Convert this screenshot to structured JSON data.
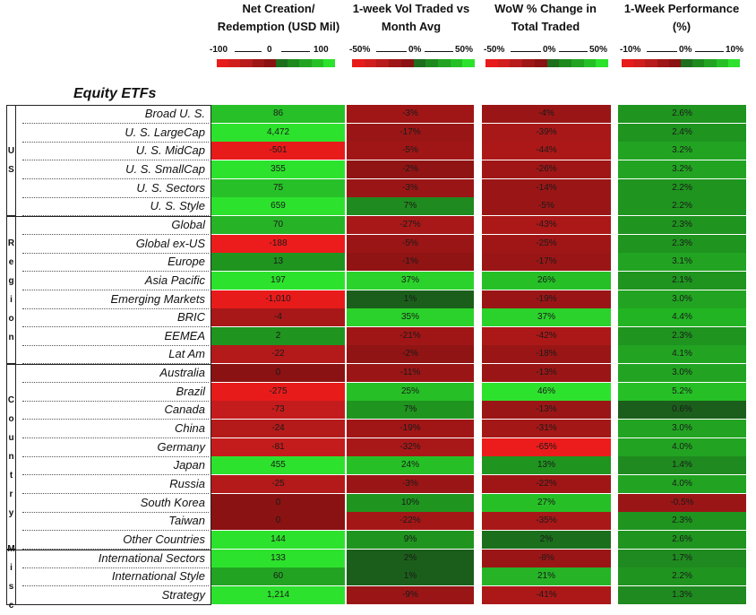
{
  "colors": {
    "scale": [
      "#e81b1b",
      "#d21d1d",
      "#b81b1b",
      "#9e1616",
      "#8a1212",
      "#1e6e1e",
      "#1e8a1e",
      "#22a422",
      "#26c026",
      "#2de22d"
    ]
  },
  "headers": [
    {
      "line1": "Net Creation/",
      "line2": "Redemption (USD Mil)",
      "scale_min": "-100",
      "scale_mid": "0",
      "scale_max": "100"
    },
    {
      "line1": "1-week Vol Traded vs",
      "line2": "Month Avg",
      "scale_min": "-50%",
      "scale_mid": "0%",
      "scale_max": "50%"
    },
    {
      "line1": "WoW % Change in",
      "line2": "Total Traded",
      "scale_min": "-50%",
      "scale_mid": "0%",
      "scale_max": "50%"
    },
    {
      "line1": "1-Week Performance",
      "line2": "(%)",
      "scale_min": "-10%",
      "scale_mid": "0%",
      "scale_max": "10%"
    }
  ],
  "section_title": "Equity ETFs",
  "groups": [
    {
      "letters": [
        "U",
        "S"
      ],
      "rows": 6
    },
    {
      "letters": [
        "R",
        "e",
        "g",
        "i",
        "o",
        "n"
      ],
      "rows": 8
    },
    {
      "letters": [
        "C",
        "o",
        "u",
        "n",
        "t",
        "r",
        "y"
      ],
      "rows": 10
    },
    {
      "letters": [
        "M",
        "i",
        "s",
        "c"
      ],
      "rows": 3
    }
  ],
  "chart_data": {
    "type": "table",
    "title": "Equity ETFs",
    "columns": [
      "Net Creation/ Redemption (USD Mil)",
      "1-week Vol Traded vs Month Avg",
      "WoW % Change in Total Traded",
      "1-Week Performance (%)"
    ],
    "rows": [
      {
        "label": "Broad U. S.",
        "values": [
          "86",
          "-3%",
          "-4%",
          "2.6%"
        ],
        "colors": [
          "#28c028",
          "#a01616",
          "#9a1616",
          "#1f941f"
        ]
      },
      {
        "label": "U. S. LargeCap",
        "values": [
          "4,472",
          "-17%",
          "-39%",
          "2.4%"
        ],
        "colors": [
          "#2de22d",
          "#9a1616",
          "#a81818",
          "#1f941f"
        ]
      },
      {
        "label": "U. S. MidCap",
        "values": [
          "-501",
          "-5%",
          "-44%",
          "3.2%"
        ],
        "colors": [
          "#e81b1b",
          "#a01616",
          "#ac1818",
          "#22a422"
        ]
      },
      {
        "label": "U. S. SmallCap",
        "values": [
          "355",
          "-2%",
          "-26%",
          "3.2%"
        ],
        "colors": [
          "#2de22d",
          "#901414",
          "#a01616",
          "#22a422"
        ]
      },
      {
        "label": "U. S. Sectors",
        "values": [
          "75",
          "-3%",
          "-14%",
          "2.2%"
        ],
        "colors": [
          "#28c028",
          "#9a1616",
          "#9a1616",
          "#1f941f"
        ]
      },
      {
        "label": "U. S. Style",
        "values": [
          "659",
          "7%",
          "-5%",
          "2.2%"
        ],
        "colors": [
          "#2de22d",
          "#1f8a1f",
          "#9a1616",
          "#1f941f"
        ]
      },
      {
        "label": "Global",
        "values": [
          "70",
          "-27%",
          "-43%",
          "2.3%"
        ],
        "colors": [
          "#26b426",
          "#a81818",
          "#ac1818",
          "#1f941f"
        ]
      },
      {
        "label": "Global ex-US",
        "values": [
          "-188",
          "-5%",
          "-25%",
          "2.3%"
        ],
        "colors": [
          "#ec1c1c",
          "#9a1616",
          "#a01616",
          "#1f941f"
        ]
      },
      {
        "label": "Europe",
        "values": [
          "13",
          "-1%",
          "-17%",
          "3.1%"
        ],
        "colors": [
          "#1f941f",
          "#901414",
          "#9a1616",
          "#22a422"
        ]
      },
      {
        "label": "Asia Pacific",
        "values": [
          "197",
          "37%",
          "26%",
          "2.1%"
        ],
        "colors": [
          "#2de22d",
          "#2bd22b",
          "#26c026",
          "#1f941f"
        ]
      },
      {
        "label": "Emerging Markets",
        "values": [
          "-1,010",
          "1%",
          "-19%",
          "3.0%"
        ],
        "colors": [
          "#e81b1b",
          "#1b5e1b",
          "#9a1616",
          "#22a422"
        ]
      },
      {
        "label": "BRIC",
        "values": [
          "-4",
          "35%",
          "37%",
          "4.4%"
        ],
        "colors": [
          "#a81818",
          "#2bd22b",
          "#2bd22b",
          "#22b422"
        ]
      },
      {
        "label": "EEMEA",
        "values": [
          "2",
          "-21%",
          "-42%",
          "2.3%"
        ],
        "colors": [
          "#1f941f",
          "#a01616",
          "#ac1818",
          "#1f941f"
        ]
      },
      {
        "label": "Lat Am",
        "values": [
          "-22",
          "-2%",
          "-18%",
          "4.1%"
        ],
        "colors": [
          "#b41a1a",
          "#901414",
          "#9a1616",
          "#22a422"
        ]
      },
      {
        "label": "Australia",
        "values": [
          "0",
          "-11%",
          "-13%",
          "3.0%"
        ],
        "colors": [
          "#8a1212",
          "#9a1616",
          "#9a1616",
          "#22a422"
        ]
      },
      {
        "label": "Brazil",
        "values": [
          "-275",
          "25%",
          "46%",
          "5.2%"
        ],
        "colors": [
          "#e81b1b",
          "#26c026",
          "#2de22d",
          "#26c026"
        ]
      },
      {
        "label": "Canada",
        "values": [
          "-73",
          "7%",
          "-13%",
          "0.6%"
        ],
        "colors": [
          "#c41c1c",
          "#1f941f",
          "#9a1616",
          "#1b5e1b"
        ]
      },
      {
        "label": "China",
        "values": [
          "-24",
          "-19%",
          "-31%",
          "3.0%"
        ],
        "colors": [
          "#b41a1a",
          "#a01616",
          "#a41717",
          "#22a422"
        ]
      },
      {
        "label": "Germany",
        "values": [
          "-81",
          "-32%",
          "-65%",
          "4.0%"
        ],
        "colors": [
          "#c41c1c",
          "#a81818",
          "#ec1c1c",
          "#22a422"
        ]
      },
      {
        "label": "Japan",
        "values": [
          "455",
          "24%",
          "13%",
          "1.4%"
        ],
        "colors": [
          "#2de22d",
          "#26c026",
          "#1f941f",
          "#1f8a1f"
        ]
      },
      {
        "label": "Russia",
        "values": [
          "-25",
          "-3%",
          "-22%",
          "4.0%"
        ],
        "colors": [
          "#b41a1a",
          "#9a1616",
          "#a01616",
          "#22a422"
        ]
      },
      {
        "label": "South Korea",
        "values": [
          "0",
          "10%",
          "27%",
          "-0.5%"
        ],
        "colors": [
          "#8a1212",
          "#1f941f",
          "#26c026",
          "#9a1616"
        ]
      },
      {
        "label": "Taiwan",
        "values": [
          "0",
          "-22%",
          "-35%",
          "2.3%"
        ],
        "colors": [
          "#8a1212",
          "#a41717",
          "#a81818",
          "#1f941f"
        ]
      },
      {
        "label": "Other Countries",
        "values": [
          "144",
          "9%",
          "2%",
          "2.6%"
        ],
        "colors": [
          "#2de22d",
          "#1f941f",
          "#1b6e1b",
          "#1f941f"
        ]
      },
      {
        "label": "International Sectors",
        "values": [
          "133",
          "2%",
          "-8%",
          "1.7%"
        ],
        "colors": [
          "#2de22d",
          "#1b5e1b",
          "#9a1616",
          "#1f8a1f"
        ]
      },
      {
        "label": "International Style",
        "values": [
          "60",
          "1%",
          "21%",
          "2.2%"
        ],
        "colors": [
          "#22a422",
          "#1b5e1b",
          "#26b426",
          "#1f941f"
        ]
      },
      {
        "label": "Strategy",
        "values": [
          "1,214",
          "-9%",
          "-41%",
          "1.3%"
        ],
        "colors": [
          "#2de22d",
          "#9a1616",
          "#ac1818",
          "#1f8a1f"
        ]
      }
    ]
  }
}
